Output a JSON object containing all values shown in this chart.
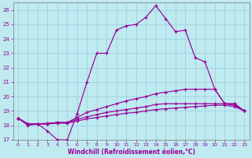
{
  "xlabel": "Windchill (Refroidissement éolien,°C)",
  "bg_color": "#beeaf0",
  "line_color": "#990099",
  "grid_color": "#99ccdd",
  "ylim": [
    17,
    26.5
  ],
  "xlim": [
    -0.5,
    23.5
  ],
  "yticks": [
    17,
    18,
    19,
    20,
    21,
    22,
    23,
    24,
    25,
    26
  ],
  "xticks": [
    0,
    1,
    2,
    3,
    4,
    5,
    6,
    7,
    8,
    9,
    10,
    11,
    12,
    13,
    14,
    15,
    16,
    17,
    18,
    19,
    20,
    21,
    22,
    23
  ],
  "line1_y": [
    18.5,
    18.0,
    18.1,
    17.6,
    17.0,
    17.0,
    18.8,
    21.0,
    23.0,
    23.0,
    24.6,
    24.9,
    25.0,
    25.5,
    26.3,
    25.4,
    24.5,
    24.6,
    22.7,
    22.4,
    20.5,
    19.5,
    19.5,
    19.0
  ],
  "line2_y": [
    18.5,
    18.1,
    18.1,
    18.15,
    18.2,
    18.2,
    18.55,
    18.9,
    19.1,
    19.3,
    19.5,
    19.7,
    19.85,
    20.0,
    20.2,
    20.3,
    20.4,
    20.5,
    20.5,
    20.5,
    20.5,
    19.5,
    19.5,
    19.0
  ],
  "line3_y": [
    18.5,
    18.1,
    18.1,
    18.1,
    18.2,
    18.2,
    18.4,
    18.6,
    18.75,
    18.9,
    19.0,
    19.1,
    19.2,
    19.3,
    19.45,
    19.5,
    19.5,
    19.5,
    19.5,
    19.5,
    19.5,
    19.5,
    19.4,
    19.0
  ],
  "line4_y": [
    18.5,
    18.1,
    18.1,
    18.1,
    18.15,
    18.15,
    18.3,
    18.45,
    18.55,
    18.65,
    18.75,
    18.85,
    18.9,
    19.0,
    19.1,
    19.15,
    19.2,
    19.25,
    19.3,
    19.35,
    19.4,
    19.4,
    19.3,
    19.0
  ]
}
